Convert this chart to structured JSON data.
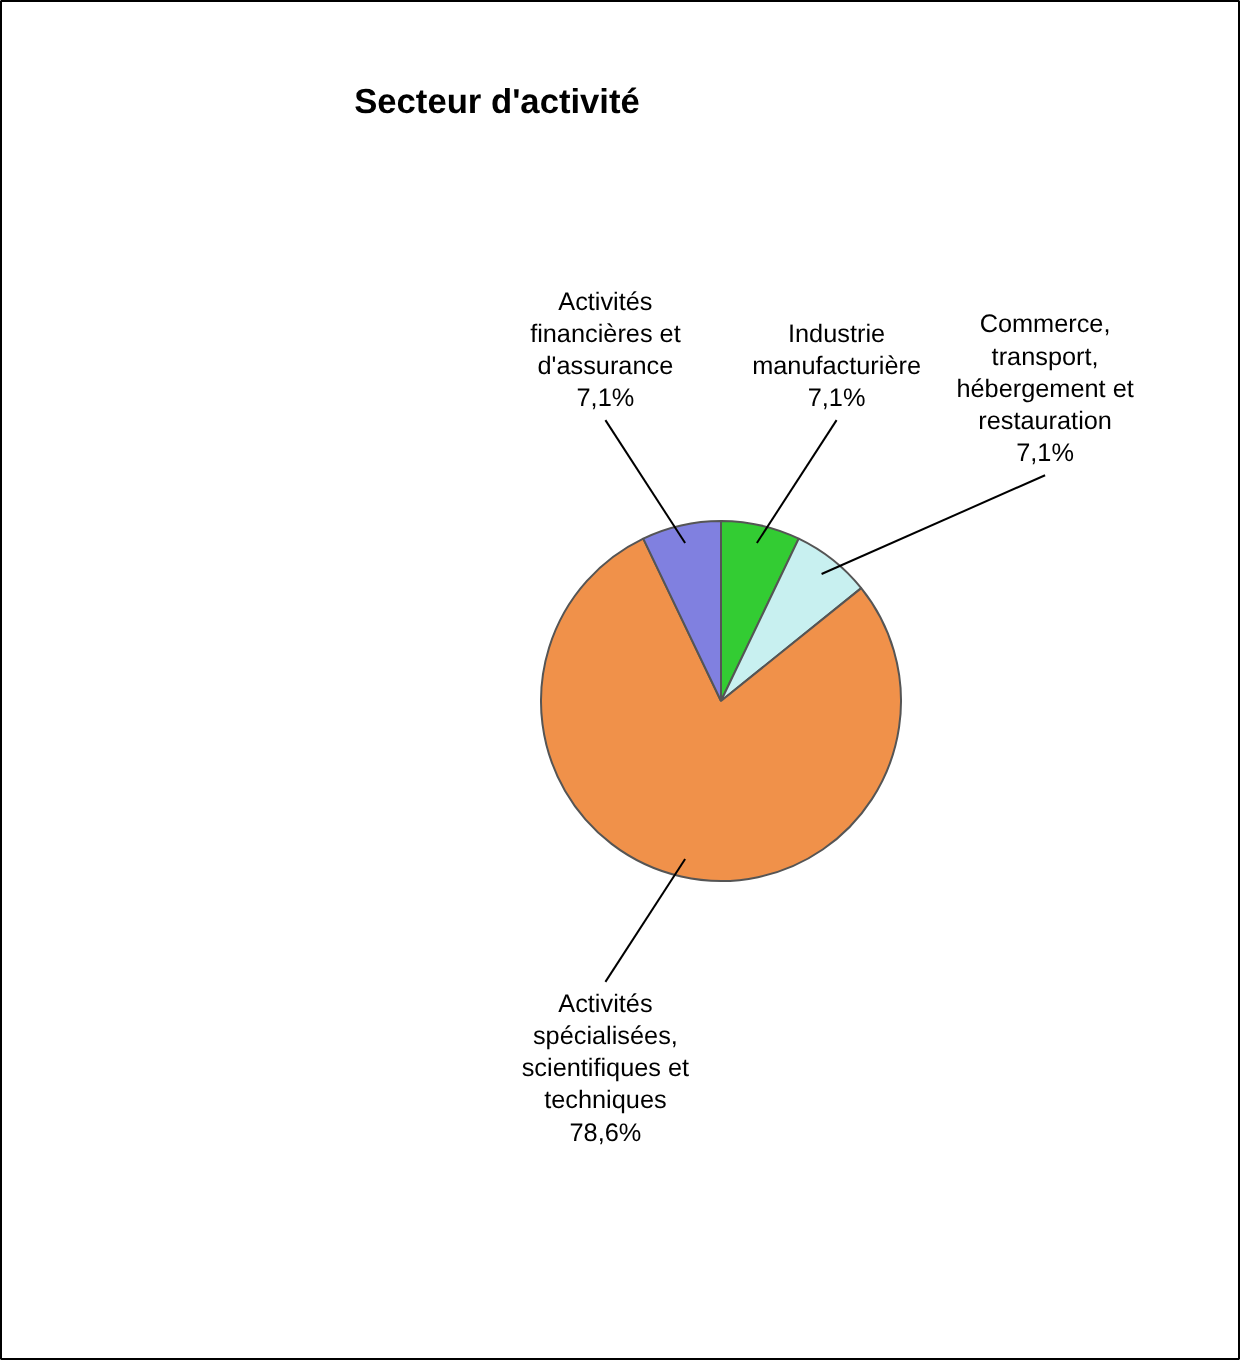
{
  "chart_data": {
    "type": "pie",
    "title": "Secteur d'activité",
    "categories": [
      "Industrie manufacturière",
      "Commerce, transport, hébergement et restauration",
      "Activités spécialisées, scientifiques et techniques",
      "Activités financières et d'assurance"
    ],
    "values": [
      7.1,
      7.1,
      78.6,
      7.1
    ],
    "value_labels": [
      "7,1%",
      "7,1%",
      "78,6%",
      "7,1%"
    ],
    "colors": [
      "#33cc33",
      "#c8f0f0",
      "#f0914a",
      "#8080e0"
    ],
    "legend": false
  }
}
